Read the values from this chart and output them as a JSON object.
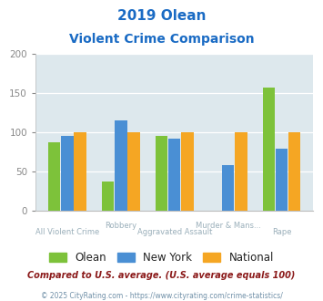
{
  "title_line1": "2019 Olean",
  "title_line2": "Violent Crime Comparison",
  "categories": [
    "All Violent Crime",
    "Robbery",
    "Aggravated Assault",
    "Murder & Mans...",
    "Rape"
  ],
  "cat_top": [
    "",
    "Robbery",
    "",
    "Murder & Mans...",
    ""
  ],
  "cat_bot": [
    "All Violent Crime",
    "",
    "Aggravated Assault",
    "",
    "Rape"
  ],
  "olean": [
    87,
    37,
    95,
    0,
    157
  ],
  "new_york": [
    95,
    115,
    92,
    58,
    79
  ],
  "national": [
    100,
    100,
    100,
    100,
    100
  ],
  "bar_colors": {
    "olean": "#7dc23a",
    "new_york": "#4a8fd4",
    "national": "#f5a623"
  },
  "ylim": [
    0,
    200
  ],
  "yticks": [
    0,
    50,
    100,
    150,
    200
  ],
  "bg_color": "#dde8ed",
  "title_color": "#1a6bc4",
  "legend_labels": [
    "Olean",
    "New York",
    "National"
  ],
  "footnote1": "Compared to U.S. average. (U.S. average equals 100)",
  "footnote2": "© 2025 CityRating.com - https://www.cityrating.com/crime-statistics/",
  "footnote1_color": "#8b1a1a",
  "footnote2_color": "#7090a8",
  "xtick_color": "#9aafba"
}
